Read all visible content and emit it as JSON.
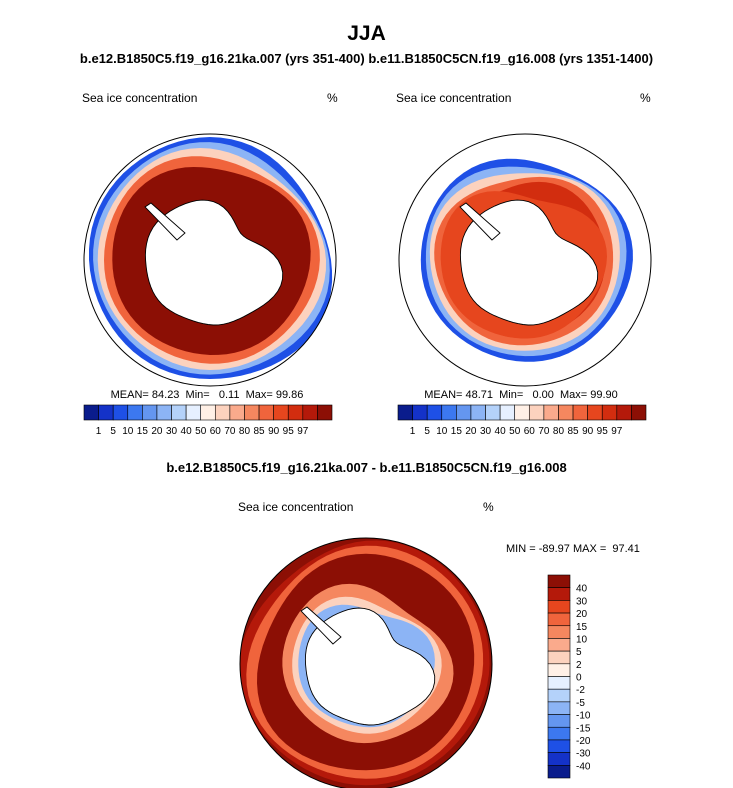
{
  "header": {
    "title": "JJA",
    "subtitle_left": "b.e12.B1850C5.f19_g16.21ka.007 (yrs 351-400)",
    "subtitle_right": "b.e11.B1850C5CN.f19_g16.008 (yrs 1351-1400)",
    "diff_title": "b.e12.B1850C5.f19_g16.21ka.007 - b.e11.B1850C5CN.f19_g16.008"
  },
  "colors": {
    "seq": [
      "#0a1c8c",
      "#1432c8",
      "#1e50e6",
      "#3c78f0",
      "#6496f0",
      "#8cb4f5",
      "#b4d2fa",
      "#e6f0ff",
      "#fff0e6",
      "#fcd2be",
      "#faaa8c",
      "#f5875f",
      "#f0643c",
      "#e6461e",
      "#d22d0f",
      "#b4190a",
      "#8c0f05"
    ],
    "div": [
      "#0a1c8c",
      "#1432c8",
      "#1e50e6",
      "#3c78f0",
      "#6496f0",
      "#8cb4f5",
      "#b4d2fa",
      "#e6f0ff",
      "#fff0e6",
      "#fcd2be",
      "#faaa8c",
      "#f5875f",
      "#f0643c",
      "#e6461e",
      "#b4190a",
      "#8c0f05"
    ],
    "land": "#ffffff",
    "coast": "#000000"
  },
  "chart_data": [
    {
      "type": "polar-contour",
      "name": "21ka",
      "title": "Sea ice concentration",
      "units": "%",
      "stats_text": "MEAN= 84.23  Min=   0.11  Max= 99.86",
      "stats": {
        "mean": 84.23,
        "min": 0.11,
        "max": 99.86
      },
      "levels": [
        "1",
        "5",
        "10",
        "15",
        "20",
        "30",
        "40",
        "50",
        "60",
        "70",
        "80",
        "85",
        "90",
        "95",
        "97"
      ],
      "ice_edge_fraction": 0.96,
      "dominant_class": 16
    },
    {
      "type": "polar-contour",
      "name": "pi",
      "title": "Sea ice concentration",
      "units": "%",
      "stats_text": "MEAN= 48.71  Min=   0.00  Max= 99.90",
      "stats": {
        "mean": 48.71,
        "min": 0.0,
        "max": 99.9
      },
      "levels": [
        "1",
        "5",
        "10",
        "15",
        "20",
        "30",
        "40",
        "50",
        "60",
        "70",
        "80",
        "85",
        "90",
        "95",
        "97"
      ],
      "ice_edge_fraction": 0.82,
      "dominant_class": 14
    },
    {
      "type": "polar-contour",
      "name": "diff",
      "title": "Sea ice concentration",
      "units": "%",
      "stats_text": "MIN = -89.97 MAX =  97.41",
      "stats": {
        "min": -89.97,
        "max": 97.41
      },
      "levels": [
        "40",
        "30",
        "20",
        "15",
        "10",
        "5",
        "2",
        "0",
        "-2",
        "-5",
        "-10",
        "-15",
        "-20",
        "-30",
        "-40"
      ],
      "dominant_class": 15
    }
  ]
}
